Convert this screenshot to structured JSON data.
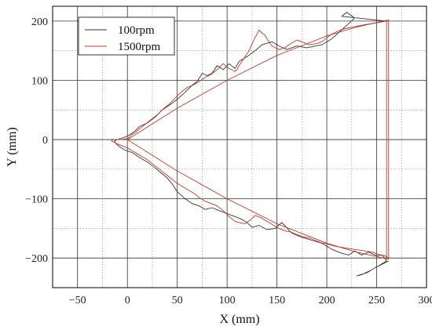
{
  "chart_data": {
    "type": "line",
    "title": "",
    "xlabel": "X (mm)",
    "ylabel": "Y (mm)",
    "xlim": [
      -75,
      300
    ],
    "ylim": [
      -250,
      225
    ],
    "x_ticks": [
      -50,
      0,
      50,
      100,
      150,
      200,
      250,
      300
    ],
    "y_ticks": [
      -200,
      -100,
      0,
      100,
      200
    ],
    "grid": true,
    "legend_position": "top-left",
    "legend": [
      "100rpm",
      "1500rpm"
    ],
    "series": [
      {
        "name": "100rpm",
        "color": "#333333",
        "x": [
          260,
          215,
          220,
          228,
          222,
          215,
          205,
          195,
          180,
          170,
          160,
          152,
          145,
          135,
          128,
          120,
          112,
          108,
          102,
          96,
          90,
          85,
          80,
          75,
          70,
          65,
          58,
          50,
          42,
          35,
          28,
          20,
          12,
          8,
          4,
          0,
          -3,
          -6,
          -10,
          -13,
          -12,
          -8,
          -2,
          5,
          12,
          20,
          28,
          35,
          40,
          45,
          50,
          58,
          65,
          72,
          78,
          85,
          92,
          100,
          108,
          115,
          120,
          125,
          132,
          140,
          148,
          155,
          165,
          175,
          185,
          195,
          205,
          215,
          222,
          228,
          235,
          242,
          250,
          255,
          258,
          260,
          255,
          245,
          235,
          230,
          240,
          250,
          262
        ],
        "y": [
          200,
          208,
          215,
          205,
          196,
          185,
          170,
          160,
          155,
          158,
          152,
          158,
          165,
          160,
          150,
          140,
          132,
          120,
          128,
          118,
          125,
          112,
          108,
          112,
          98,
          92,
          80,
          68,
          58,
          50,
          38,
          28,
          22,
          15,
          10,
          6,
          4,
          2,
          0,
          -2,
          -6,
          -12,
          -18,
          -22,
          -30,
          -38,
          -48,
          -58,
          -65,
          -75,
          -88,
          -100,
          -108,
          -112,
          -118,
          -115,
          -120,
          -125,
          -130,
          -135,
          -140,
          -148,
          -145,
          -152,
          -150,
          -140,
          -158,
          -165,
          -170,
          -175,
          -185,
          -192,
          -195,
          -188,
          -195,
          -190,
          -196,
          -195,
          -200,
          -205,
          -210,
          -220,
          -228,
          -230,
          -225,
          -215,
          -205
        ]
      },
      {
        "name": "1500rpm",
        "color": "#c0392b",
        "x": [
          260,
          235,
          215,
          205,
          200,
          196,
          190,
          182,
          175,
          170,
          162,
          158,
          152,
          145,
          140,
          138,
          135,
          132,
          130,
          128,
          125,
          122,
          118,
          115,
          112,
          110,
          108,
          102,
          96,
          90,
          84,
          78,
          72,
          66,
          60,
          54,
          48,
          42,
          36,
          30,
          24,
          18,
          12,
          8,
          4,
          2,
          0,
          -3,
          -6,
          -10,
          -14,
          -16,
          -12,
          -6,
          0,
          4,
          8,
          14,
          20,
          26,
          32,
          38,
          44,
          50,
          56,
          62,
          68,
          72,
          78,
          84,
          90,
          96,
          102,
          108,
          112,
          118,
          124,
          128,
          134,
          140,
          146,
          152,
          158,
          164,
          170,
          176,
          182,
          188,
          194,
          200,
          208,
          215,
          222,
          230,
          238,
          246,
          252,
          258,
          262,
          260,
          260
        ],
        "y": [
          200,
          193,
          186,
          178,
          172,
          166,
          162,
          160,
          165,
          168,
          160,
          155,
          152,
          158,
          170,
          176,
          180,
          185,
          178,
          172,
          162,
          150,
          140,
          132,
          125,
          118,
          115,
          120,
          128,
          118,
          110,
          105,
          98,
          92,
          88,
          80,
          70,
          60,
          52,
          42,
          34,
          26,
          18,
          12,
          8,
          4,
          2,
          1,
          0,
          0,
          0,
          -2,
          -6,
          -10,
          -14,
          -18,
          -22,
          -28,
          -34,
          -42,
          -50,
          -58,
          -66,
          -74,
          -80,
          -86,
          -92,
          -98,
          -104,
          -108,
          -112,
          -120,
          -130,
          -138,
          -140,
          -142,
          -135,
          -128,
          -132,
          -138,
          -144,
          -150,
          -154,
          -156,
          -160,
          -164,
          -166,
          -170,
          -174,
          -176,
          -180,
          -182,
          -184,
          -186,
          -188,
          -190,
          -194,
          -196,
          -200,
          -200,
          200
        ]
      },
      {
        "name": "",
        "color": "#c0392b",
        "x": [
          0,
          50,
          100,
          150,
          200,
          230,
          262
        ],
        "y": [
          0,
          53,
          100,
          142,
          175,
          190,
          202
        ]
      },
      {
        "name": "",
        "color": "#c0392b",
        "x": [
          0,
          50,
          100,
          150,
          200,
          230,
          262
        ],
        "y": [
          0,
          -53,
          -100,
          -142,
          -175,
          -190,
          -202
        ]
      },
      {
        "name": "",
        "color": "#c0392b",
        "x": [
          262,
          262
        ],
        "y": [
          202,
          -202
        ]
      }
    ]
  }
}
